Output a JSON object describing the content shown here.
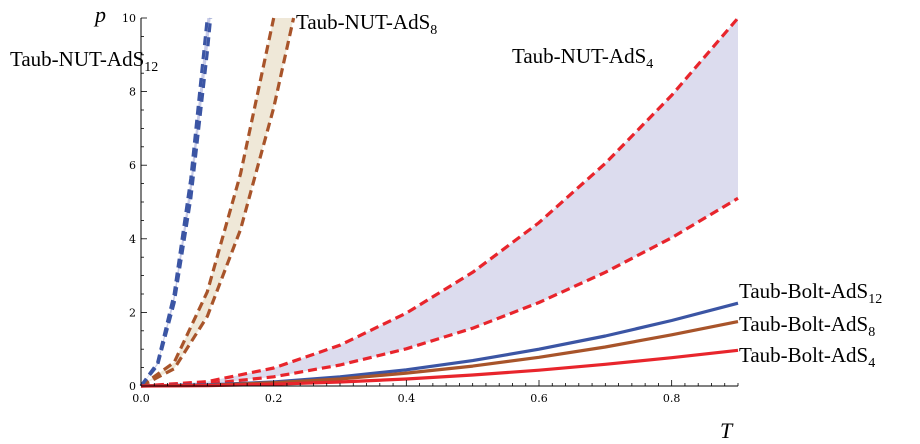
{
  "chart_data": {
    "type": "line",
    "xlabel": "T",
    "ylabel": "p",
    "xlim": [
      0,
      0.9
    ],
    "ylim": [
      0,
      10
    ],
    "x_ticks": [
      "0.0",
      "0.2",
      "0.4",
      "0.6",
      "0.8"
    ],
    "y_ticks": [
      "0",
      "2",
      "4",
      "6",
      "8",
      "10"
    ],
    "colors": {
      "ads4": "#e8252c",
      "ads8": "#a8542a",
      "ads12": "#3b55a4",
      "band4": "#dcdcee",
      "band8": "#efe8d8",
      "band12": "#c8cce8"
    },
    "series": [
      {
        "name": "Taub-NUT-AdS4 (upper)",
        "style": "dashed",
        "color_key": "ads4",
        "x": [
          0,
          0.1,
          0.2,
          0.3,
          0.4,
          0.5,
          0.6,
          0.7,
          0.8,
          0.9
        ],
        "y": [
          0,
          0.12,
          0.49,
          1.11,
          1.98,
          3.09,
          4.44,
          6.05,
          7.9,
          10.0
        ]
      },
      {
        "name": "Taub-NUT-AdS4 (lower)",
        "style": "dashed",
        "color_key": "ads4",
        "x": [
          0,
          0.1,
          0.2,
          0.3,
          0.4,
          0.5,
          0.6,
          0.7,
          0.8,
          0.9
        ],
        "y": [
          0,
          0.06,
          0.25,
          0.57,
          1.01,
          1.57,
          2.27,
          3.09,
          4.03,
          5.1
        ]
      },
      {
        "name": "Taub-NUT-AdS8 (upper)",
        "style": "dashed",
        "color_key": "ads8",
        "x": [
          0,
          0.05,
          0.1,
          0.15,
          0.2
        ],
        "y": [
          0,
          0.64,
          2.56,
          5.76,
          10.0
        ]
      },
      {
        "name": "Taub-NUT-AdS8 (lower)",
        "style": "dashed",
        "color_key": "ads8",
        "x": [
          0,
          0.05,
          0.1,
          0.15,
          0.2,
          0.23
        ],
        "y": [
          0,
          0.47,
          1.89,
          4.25,
          7.56,
          10.0
        ]
      },
      {
        "name": "Taub-NUT-AdS12 (upper)",
        "style": "dashed",
        "color_key": "ads12",
        "x": [
          0,
          0.025,
          0.05,
          0.075,
          0.1
        ],
        "y": [
          0,
          0.63,
          2.5,
          5.63,
          10.0
        ]
      },
      {
        "name": "Taub-NUT-AdS12 (lower)",
        "style": "dashed",
        "color_key": "ads12",
        "x": [
          0,
          0.025,
          0.05,
          0.075,
          0.1,
          0.105
        ],
        "y": [
          0,
          0.57,
          2.27,
          5.1,
          9.07,
          10.0
        ]
      },
      {
        "name": "Taub-Bolt-AdS12",
        "style": "solid",
        "color_key": "ads12",
        "x": [
          0,
          0.1,
          0.2,
          0.3,
          0.4,
          0.5,
          0.6,
          0.7,
          0.8,
          0.9
        ],
        "y": [
          0,
          0.03,
          0.11,
          0.25,
          0.44,
          0.69,
          1.0,
          1.36,
          1.78,
          2.25
        ]
      },
      {
        "name": "Taub-Bolt-AdS8",
        "style": "solid",
        "color_key": "ads8",
        "x": [
          0,
          0.1,
          0.2,
          0.3,
          0.4,
          0.5,
          0.6,
          0.7,
          0.8,
          0.9
        ],
        "y": [
          0,
          0.02,
          0.09,
          0.19,
          0.35,
          0.54,
          0.78,
          1.06,
          1.39,
          1.75
        ]
      },
      {
        "name": "Taub-Bolt-AdS4",
        "style": "solid",
        "color_key": "ads4",
        "x": [
          0,
          0.1,
          0.2,
          0.3,
          0.4,
          0.5,
          0.6,
          0.7,
          0.8,
          0.9
        ],
        "y": [
          0,
          0.01,
          0.05,
          0.11,
          0.19,
          0.3,
          0.43,
          0.59,
          0.77,
          0.97
        ]
      }
    ],
    "bands": [
      {
        "upper": "Taub-NUT-AdS4 (upper)",
        "lower": "Taub-NUT-AdS4 (lower)",
        "color_key": "band4"
      },
      {
        "upper": "Taub-NUT-AdS8 (upper)",
        "lower": "Taub-NUT-AdS8 (lower)",
        "color_key": "band8"
      },
      {
        "upper": "Taub-NUT-AdS12 (upper)",
        "lower": "Taub-NUT-AdS12 (lower)",
        "color_key": "band12"
      }
    ],
    "annotations": [
      {
        "base": "Taub-NUT-AdS",
        "sub": "12"
      },
      {
        "base": "Taub-NUT-AdS",
        "sub": "8"
      },
      {
        "base": "Taub-NUT-AdS",
        "sub": "4"
      },
      {
        "base": "Taub-Bolt-AdS",
        "sub": "12"
      },
      {
        "base": "Taub-Bolt-AdS",
        "sub": "8"
      },
      {
        "base": "Taub-Bolt-AdS",
        "sub": "4"
      }
    ]
  }
}
